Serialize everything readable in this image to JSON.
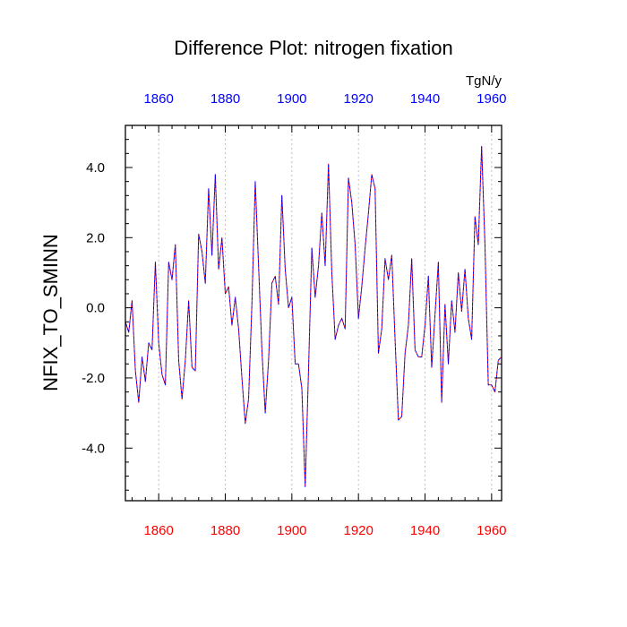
{
  "chart_data": {
    "type": "line",
    "title": "Difference Plot: nitrogen fixation",
    "units": "TgN/y",
    "ylabel": "NFIX_TO_SMINN",
    "xlabel": "",
    "xlim": [
      1850,
      1963
    ],
    "ylim": [
      -5.5,
      5.2
    ],
    "grid_x": true,
    "x_ticks": [
      1860,
      1880,
      1900,
      1920,
      1940,
      1960
    ],
    "x_tick_labels_bottom": [
      "1860",
      "1880",
      "1900",
      "1920",
      "1940",
      "1960"
    ],
    "x_tick_labels_top": [
      "1860",
      "1880",
      "1900",
      "1920",
      "1940",
      "1960"
    ],
    "bottom_label_color": "#ff0000",
    "top_label_color": "#0000ff",
    "y_ticks": [
      -4,
      -2,
      0,
      2,
      4
    ],
    "y_tick_labels": [
      "-4.0",
      "-2.0",
      "0.0",
      "2.0",
      "4.0"
    ],
    "series": [
      {
        "name": "series-red",
        "color": "#ff0000",
        "dashed": true,
        "x": [
          1850,
          1851,
          1852,
          1853,
          1854,
          1855,
          1856,
          1857,
          1858,
          1859,
          1860,
          1861,
          1862,
          1863,
          1864,
          1865,
          1866,
          1867,
          1868,
          1869,
          1870,
          1871,
          1872,
          1873,
          1874,
          1875,
          1876,
          1877,
          1878,
          1879,
          1880,
          1881,
          1882,
          1883,
          1884,
          1885,
          1886,
          1887,
          1888,
          1889,
          1890,
          1891,
          1892,
          1893,
          1894,
          1895,
          1896,
          1897,
          1898,
          1899,
          1900,
          1901,
          1902,
          1903,
          1904,
          1905,
          1906,
          1907,
          1908,
          1909,
          1910,
          1911,
          1912,
          1913,
          1914,
          1915,
          1916,
          1917,
          1918,
          1919,
          1920,
          1921,
          1922,
          1923,
          1924,
          1925,
          1926,
          1927,
          1928,
          1929,
          1930,
          1931,
          1932,
          1933,
          1934,
          1935,
          1936,
          1937,
          1938,
          1939,
          1940,
          1941,
          1942,
          1943,
          1944,
          1945,
          1946,
          1947,
          1948,
          1949,
          1950,
          1951,
          1952,
          1953,
          1954,
          1955,
          1956,
          1957,
          1958,
          1959,
          1960,
          1961,
          1962,
          1963
        ],
        "values": [
          -0.4,
          -0.7,
          0.2,
          -1.8,
          -2.7,
          -1.4,
          -2.1,
          -1.0,
          -1.2,
          1.3,
          -1.0,
          -1.9,
          -2.2,
          1.3,
          0.8,
          1.8,
          -1.5,
          -2.6,
          -1.5,
          0.2,
          -1.7,
          -1.8,
          2.1,
          1.6,
          0.7,
          3.4,
          1.5,
          3.8,
          1.1,
          2.0,
          0.4,
          0.6,
          -0.5,
          0.3,
          -0.6,
          -2.0,
          -3.3,
          -2.6,
          0.1,
          3.6,
          1.2,
          -1.2,
          -3.0,
          -1.5,
          0.7,
          0.9,
          0.1,
          3.2,
          1.1,
          0.0,
          0.3,
          -1.6,
          -1.6,
          -2.3,
          -5.1,
          -1.8,
          1.7,
          0.3,
          1.2,
          2.7,
          1.2,
          4.1,
          1.0,
          -0.9,
          -0.5,
          -0.3,
          -0.6,
          3.7,
          3.0,
          1.8,
          -0.3,
          0.6,
          1.7,
          2.7,
          3.8,
          3.4,
          -1.3,
          -0.6,
          1.4,
          0.8,
          1.5,
          -0.9,
          -3.2,
          -3.1,
          -1.3,
          -0.5,
          1.4,
          -1.2,
          -1.4,
          -1.4,
          -0.5,
          0.9,
          -1.7,
          -0.2,
          1.3,
          -2.7,
          0.1,
          -1.6,
          0.2,
          -0.7,
          1.0,
          -0.1,
          1.1,
          -0.3,
          -0.9,
          2.6,
          1.8,
          4.6,
          1.8,
          -2.2,
          -2.2,
          -2.4,
          -1.5,
          -1.4
        ]
      },
      {
        "name": "series-blue",
        "color": "#0000ff",
        "dashed": true,
        "x": [
          1850,
          1851,
          1852,
          1853,
          1854,
          1855,
          1856,
          1857,
          1858,
          1859,
          1860,
          1861,
          1862,
          1863,
          1864,
          1865,
          1866,
          1867,
          1868,
          1869,
          1870,
          1871,
          1872,
          1873,
          1874,
          1875,
          1876,
          1877,
          1878,
          1879,
          1880,
          1881,
          1882,
          1883,
          1884,
          1885,
          1886,
          1887,
          1888,
          1889,
          1890,
          1891,
          1892,
          1893,
          1894,
          1895,
          1896,
          1897,
          1898,
          1899,
          1900,
          1901,
          1902,
          1903,
          1904,
          1905,
          1906,
          1907,
          1908,
          1909,
          1910,
          1911,
          1912,
          1913,
          1914,
          1915,
          1916,
          1917,
          1918,
          1919,
          1920,
          1921,
          1922,
          1923,
          1924,
          1925,
          1926,
          1927,
          1928,
          1929,
          1930,
          1931,
          1932,
          1933,
          1934,
          1935,
          1936,
          1937,
          1938,
          1939,
          1940,
          1941,
          1942,
          1943,
          1944,
          1945,
          1946,
          1947,
          1948,
          1949,
          1950,
          1951,
          1952,
          1953,
          1954,
          1955,
          1956,
          1957,
          1958,
          1959,
          1960,
          1961,
          1962,
          1963
        ],
        "values": [
          -0.4,
          -0.7,
          0.2,
          -1.8,
          -2.7,
          -1.4,
          -2.1,
          -1.0,
          -1.2,
          1.3,
          -1.0,
          -1.9,
          -2.2,
          1.3,
          0.8,
          1.8,
          -1.5,
          -2.6,
          -1.5,
          0.2,
          -1.7,
          -1.8,
          2.1,
          1.6,
          0.7,
          3.4,
          1.5,
          3.8,
          1.1,
          2.0,
          0.4,
          0.6,
          -0.5,
          0.3,
          -0.6,
          -2.0,
          -3.3,
          -2.6,
          0.1,
          3.6,
          1.2,
          -1.2,
          -3.0,
          -1.5,
          0.7,
          0.9,
          0.1,
          3.2,
          1.1,
          0.0,
          0.3,
          -1.6,
          -1.6,
          -2.3,
          -5.1,
          -1.8,
          1.7,
          0.3,
          1.2,
          2.7,
          1.2,
          4.1,
          1.0,
          -0.9,
          -0.5,
          -0.3,
          -0.6,
          3.7,
          3.0,
          1.8,
          -0.3,
          0.6,
          1.7,
          2.7,
          3.8,
          3.4,
          -1.3,
          -0.6,
          1.4,
          0.8,
          1.5,
          -0.9,
          -3.2,
          -3.1,
          -1.3,
          -0.5,
          1.4,
          -1.2,
          -1.4,
          -1.4,
          -0.5,
          0.9,
          -1.7,
          -0.2,
          1.3,
          -2.7,
          0.1,
          -1.6,
          0.2,
          -0.7,
          1.0,
          -0.1,
          1.1,
          -0.3,
          -0.9,
          2.6,
          1.8,
          4.6,
          1.8,
          -2.2,
          -2.2,
          -2.4,
          -1.5,
          -1.4
        ]
      }
    ]
  }
}
